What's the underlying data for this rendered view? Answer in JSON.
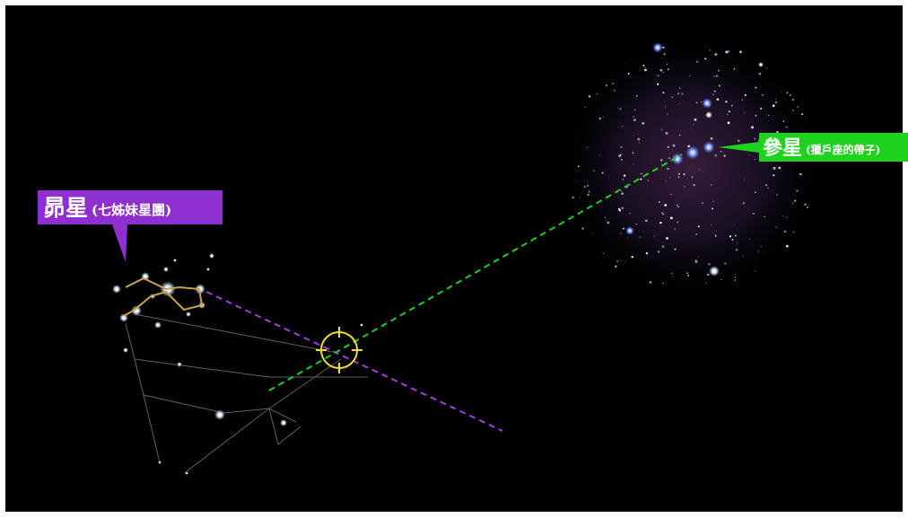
{
  "labels": {
    "pleiades": {
      "name": "昴星",
      "note": "(七姊妹星團)"
    },
    "orion": {
      "name": "參星",
      "note": "(獵戶座的帶子)"
    }
  }
}
